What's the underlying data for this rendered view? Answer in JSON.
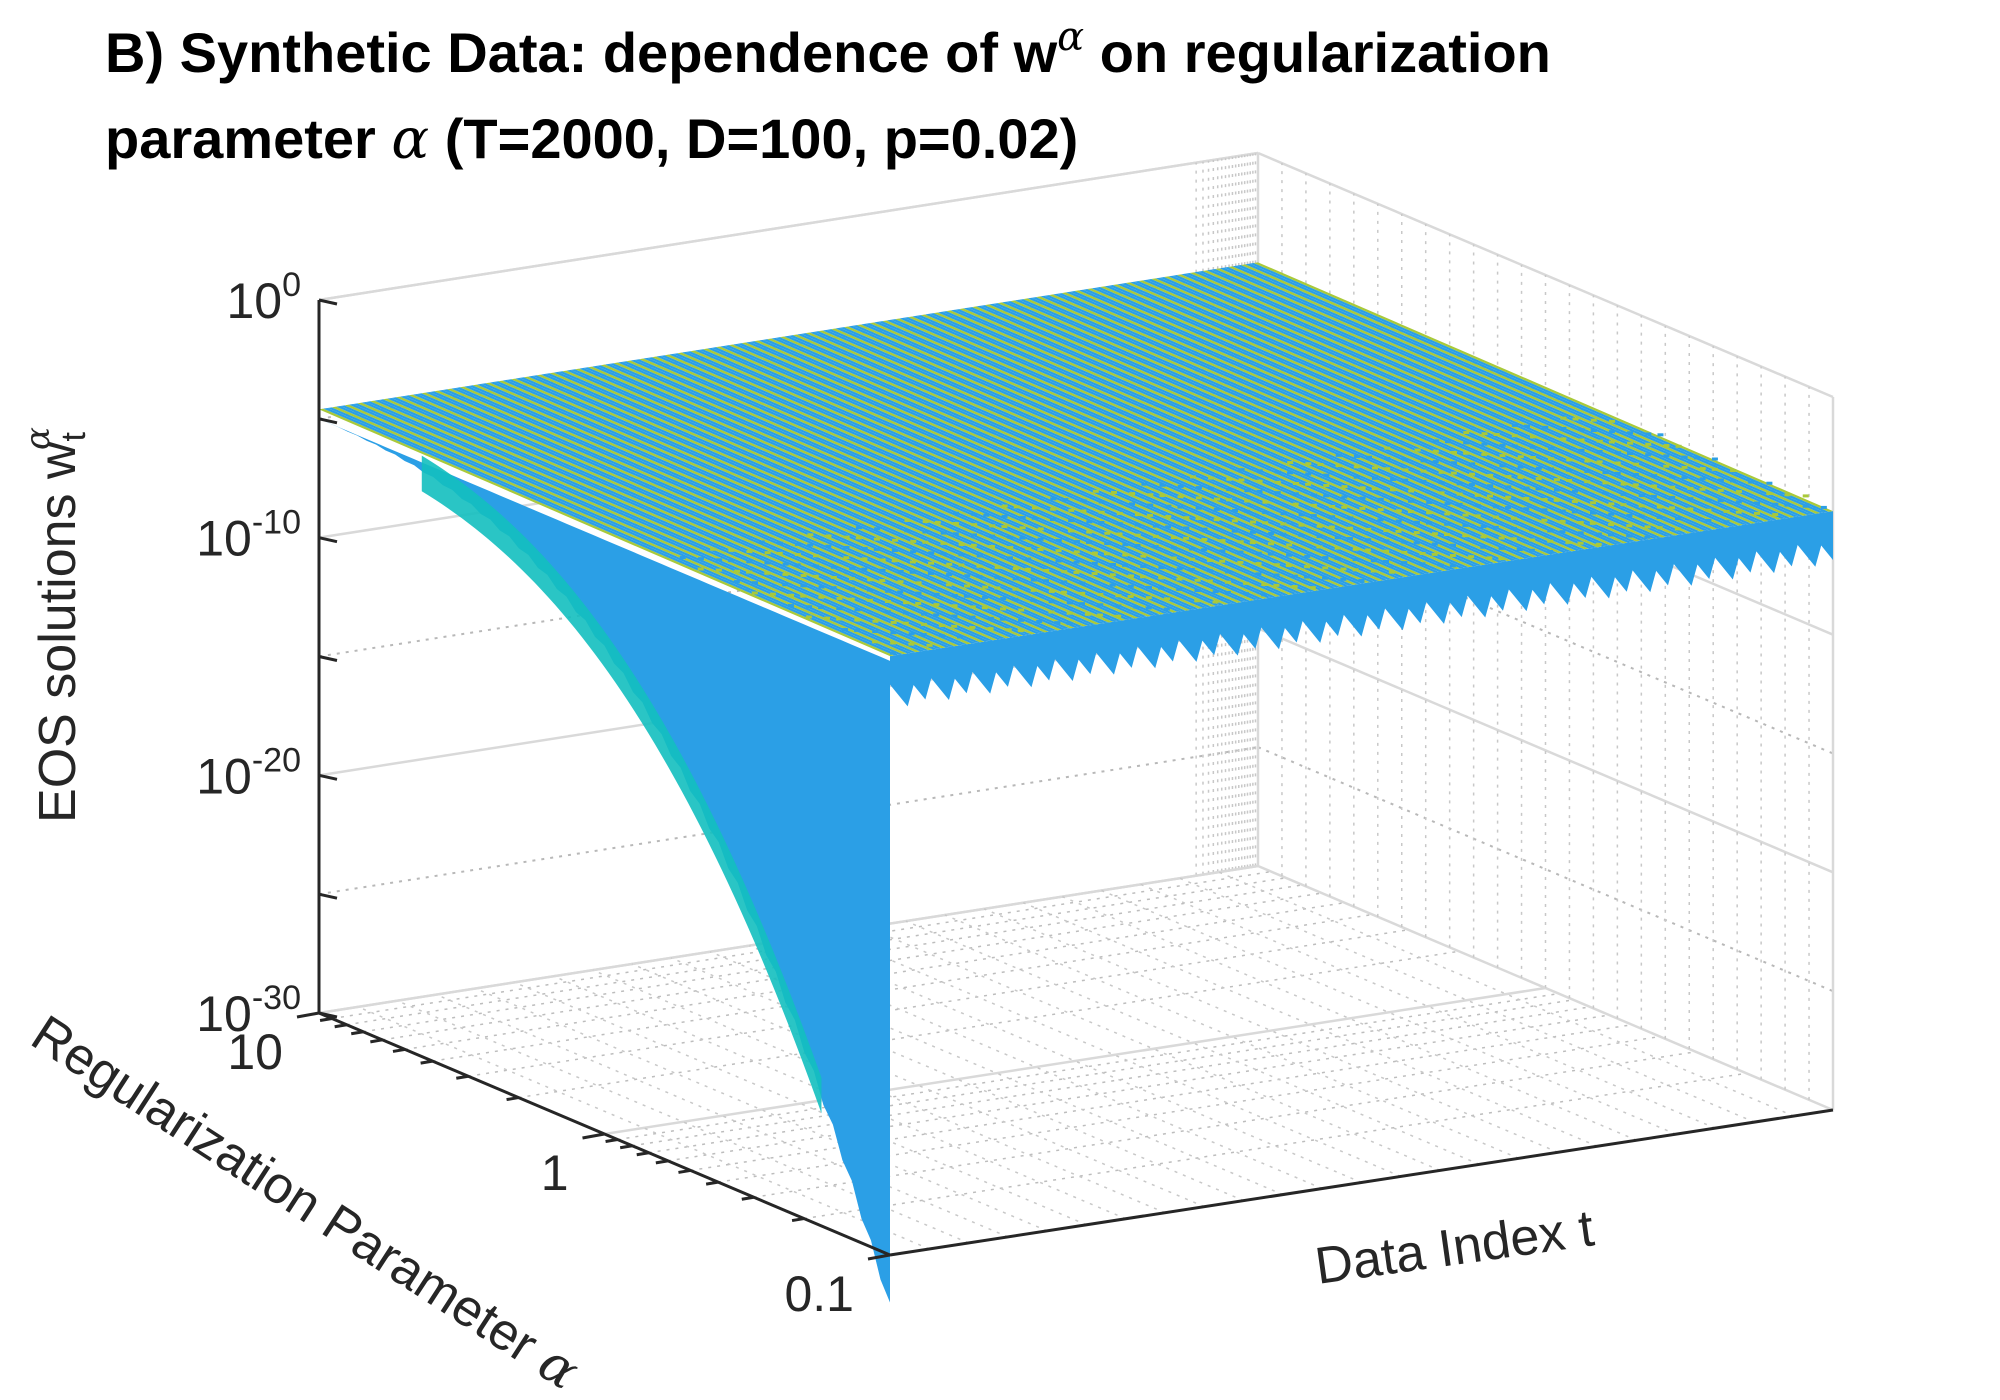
{
  "chart_data": {
    "type": "surface3d",
    "title": {
      "line1_prefix": "B) Synthetic Data: dependence of  w",
      "line1_sup": "α",
      "line1_suffix": " on regularization",
      "line2_prefix": "parameter ",
      "line2_greek": "α",
      "line2_suffix": " (T=2000, D=100, p=0.02)"
    },
    "zlabel": {
      "prefix": "EOS solutions w",
      "sub": "t",
      "sup": "α"
    },
    "ylabel": {
      "prefix": "Regularization Parameter ",
      "greek": "α"
    },
    "xlabel": "Data Index t",
    "zscale": "log",
    "zlim": [
      1e-30,
      1
    ],
    "zticks": [
      {
        "base": "10",
        "exp": "0",
        "value": 1
      },
      {
        "base": "10",
        "exp": "-10",
        "value": 1e-10
      },
      {
        "base": "10",
        "exp": "-20",
        "value": 1e-20
      },
      {
        "base": "10",
        "exp": "-30",
        "value": 1e-30
      }
    ],
    "yscale": "log",
    "yticks": [
      {
        "label": "10",
        "value": 10
      },
      {
        "label": "1",
        "value": 1
      },
      {
        "label": "0.1",
        "value": 0.1
      }
    ],
    "x_range": [
      1,
      2000
    ],
    "grid": true,
    "colors": {
      "surface_blue": "#2b9fe6",
      "surface_yellow": "#a9c93a",
      "surface_teal": "#13bfbf",
      "axis": "#262626",
      "grid": "#d9d9d9"
    },
    "description_values": {
      "plateau_level": 1e-05,
      "minimum_w_at_alpha_0_1": 1e-32
    }
  }
}
